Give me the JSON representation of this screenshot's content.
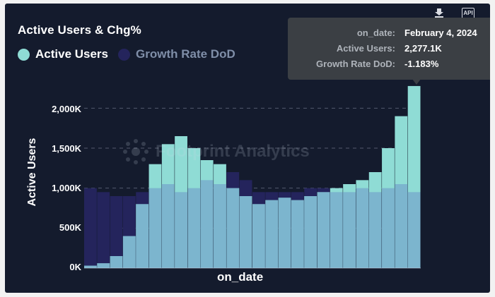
{
  "header": {
    "title": "Active Users & Chg%"
  },
  "toolbar": {
    "download_icon": "download-icon",
    "api_label": "API"
  },
  "legend": [
    {
      "label": "Active Users",
      "color": "#8fdcd5"
    },
    {
      "label": "Growth Rate DoD",
      "color": "#24245c"
    }
  ],
  "watermark": {
    "text": "Footprint Analytics"
  },
  "tooltip": {
    "rows": [
      {
        "key": "on_date:",
        "value": "February 4, 2024"
      },
      {
        "key": "Active Users:",
        "value": "2,277.1K"
      },
      {
        "key": "Growth Rate DoD:",
        "value": "-1.183%"
      }
    ]
  },
  "chart_data": {
    "type": "bar",
    "title": "Active Users & Chg%",
    "xlabel": "on_date",
    "ylabel": "Active Users",
    "y_ticks": [
      "0K",
      "500K",
      "1,000K",
      "1,500K",
      "2,000K"
    ],
    "ylim": [
      0,
      2400000
    ],
    "grid": true,
    "legend_position": "top-left",
    "series": [
      {
        "name": "Active Users",
        "color": "#8fdcd5",
        "values": [
          30000,
          60000,
          150000,
          400000,
          800000,
          1300000,
          1550000,
          1650000,
          1500000,
          1350000,
          1300000,
          1000000,
          900000,
          800000,
          850000,
          880000,
          850000,
          900000,
          950000,
          1000000,
          1050000,
          1100000,
          1200000,
          1500000,
          1900000,
          2277100
        ]
      },
      {
        "name": "Growth Rate DoD",
        "color": "#24245c",
        "values": [
          1000000,
          950000,
          900000,
          900000,
          950000,
          1000000,
          1050000,
          950000,
          1000000,
          1100000,
          1050000,
          1200000,
          1100000,
          950000,
          950000,
          950000,
          950000,
          1000000,
          1000000,
          950000,
          950000,
          1000000,
          950000,
          1000000,
          1050000,
          950000
        ]
      }
    ],
    "highlight": {
      "date": "February 4, 2024",
      "active_users": "2,277.1K",
      "growth_rate": "-1.183%"
    }
  }
}
